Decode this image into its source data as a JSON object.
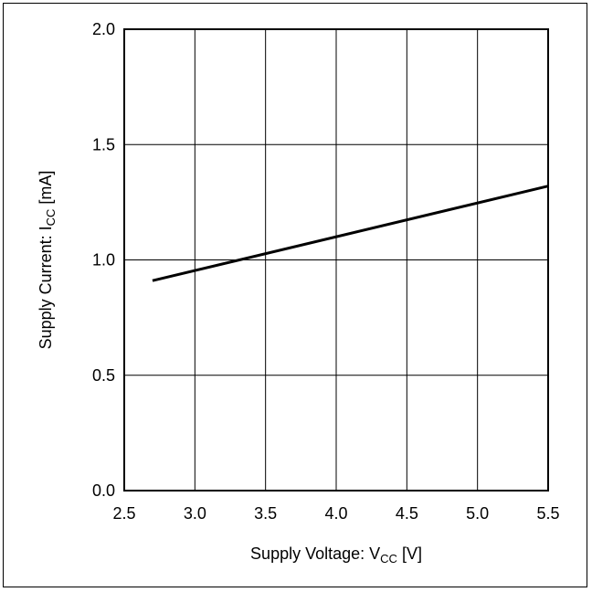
{
  "chart_data": {
    "type": "line",
    "title": "",
    "xlabel": {
      "main": "Supply Voltage: V",
      "sub": "CC",
      "unit": " [V]"
    },
    "ylabel": {
      "main": "Supply Current: I",
      "sub": "CC",
      "unit": " [mA]"
    },
    "xlim": [
      2.5,
      5.5
    ],
    "ylim": [
      0.0,
      2.0
    ],
    "x_ticks": [
      "2.5",
      "3.0",
      "3.5",
      "4.0",
      "4.5",
      "5.0",
      "5.5"
    ],
    "y_ticks": [
      "0.0",
      "0.5",
      "1.0",
      "1.5",
      "2.0"
    ],
    "grid": true,
    "series": [
      {
        "x": [
          2.7,
          5.5
        ],
        "y": [
          0.91,
          1.32
        ]
      }
    ]
  },
  "colors": {
    "line": "#000000",
    "grid": "#000000",
    "frame": "#000000"
  }
}
